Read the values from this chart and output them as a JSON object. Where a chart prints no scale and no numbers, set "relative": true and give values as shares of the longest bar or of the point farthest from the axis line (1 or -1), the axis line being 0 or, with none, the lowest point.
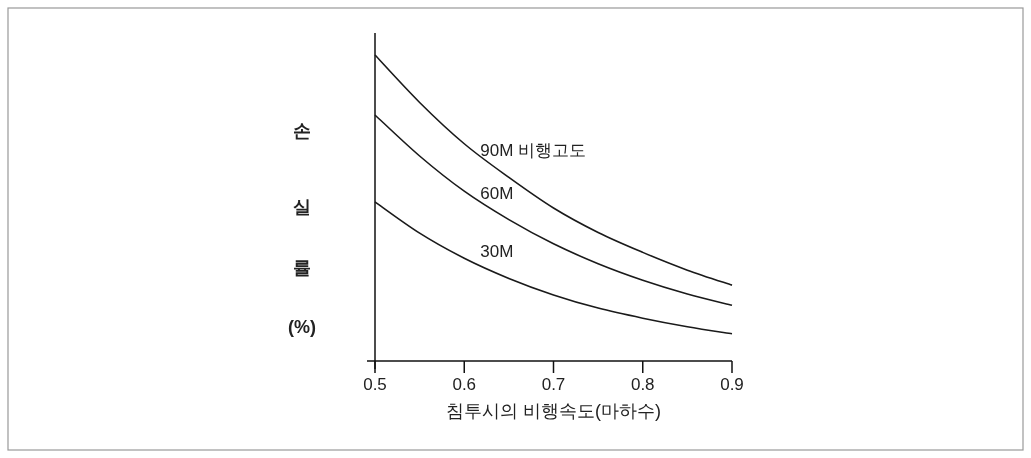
{
  "chart_data": {
    "type": "line",
    "relative": true,
    "xlabel": "침투시의 비행속도(마하수)",
    "ylabel": "손 실 률 (%)",
    "x": [
      0.5,
      0.55,
      0.6,
      0.65,
      0.7,
      0.75,
      0.8,
      0.85,
      0.9
    ],
    "xlim": [
      0.5,
      0.9
    ],
    "xticks": [
      0.5,
      0.6,
      0.7,
      0.8,
      0.9
    ],
    "series": [
      {
        "name": "90M 비행고도",
        "color": "#1a1a1a",
        "values": [
          1,
          0.845,
          0.71,
          0.6,
          0.5,
          0.42,
          0.355,
          0.297,
          0.248
        ]
      },
      {
        "name": "60M",
        "color": "#1a1a1a",
        "values": [
          0.804,
          0.67,
          0.555,
          0.462,
          0.383,
          0.318,
          0.264,
          0.219,
          0.182
        ]
      },
      {
        "name": "30M",
        "color": "#1a1a1a",
        "values": [
          0.52,
          0.418,
          0.336,
          0.27,
          0.216,
          0.173,
          0.14,
          0.112,
          0.089
        ]
      }
    ]
  }
}
